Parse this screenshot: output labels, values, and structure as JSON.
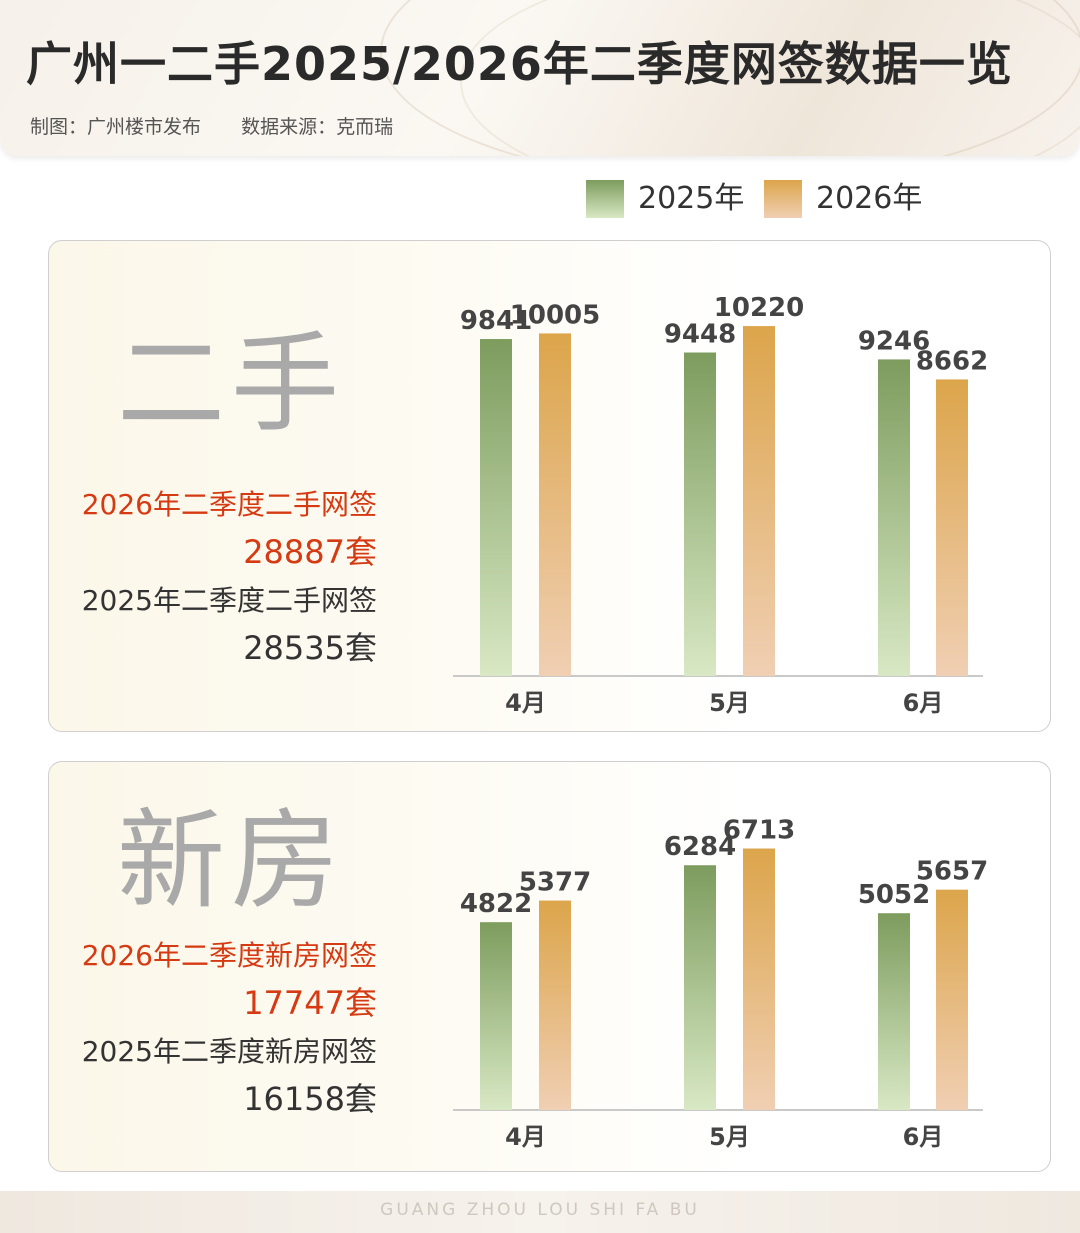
{
  "header": {
    "title": "广州一二手2025/2026年二季度网签数据一览",
    "credit_author": "制图：广州楼市发布",
    "credit_source": "数据来源：克而瑞"
  },
  "legend": [
    {
      "label": "2025年",
      "color_top": "#7d9c5e",
      "color_bottom": "#d8e8c4"
    },
    {
      "label": "2026年",
      "color_top": "#dca54b",
      "color_bottom": "#f0cfb3"
    }
  ],
  "secondhand": {
    "big_title": "二手",
    "stat_2026_label": "2026年二季度二手网签",
    "stat_2026_value": "28887套",
    "stat_2025_label": "2025年二季度二手网签",
    "stat_2025_value": "28535套"
  },
  "newhome": {
    "big_title": "新房",
    "stat_2026_label": "2026年二季度新房网签",
    "stat_2026_value": "17747套",
    "stat_2025_label": "2025年二季度新房网签",
    "stat_2025_value": "16158套"
  },
  "chart_data": [
    {
      "type": "bar",
      "categories": [
        "4月",
        "5月",
        "6月"
      ],
      "series": [
        {
          "name": "2025年",
          "values": [
            9841,
            9448,
            9246
          ]
        },
        {
          "name": "2026年",
          "values": [
            10005,
            10220,
            8662
          ]
        }
      ],
      "title": "二手",
      "legend": "top-right",
      "grid": false
    },
    {
      "type": "bar",
      "categories": [
        "4月",
        "5月",
        "6月"
      ],
      "series": [
        {
          "name": "2025年",
          "values": [
            4822,
            6284,
            5052
          ]
        },
        {
          "name": "2026年",
          "values": [
            5377,
            6713,
            5657
          ]
        }
      ],
      "title": "新房",
      "legend": "top-right",
      "grid": false
    }
  ],
  "footer": {
    "text": "GUANG ZHOU LOU SHI FA BU"
  }
}
